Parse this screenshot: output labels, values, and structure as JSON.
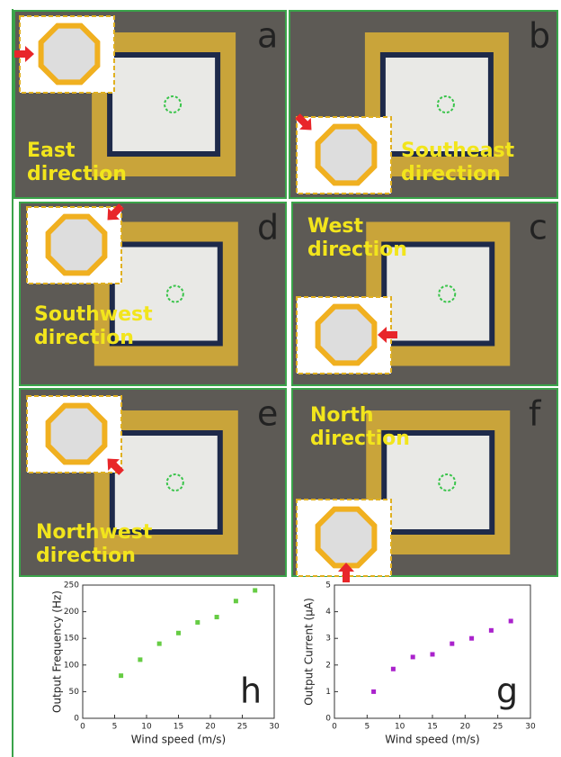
{
  "panels": [
    {
      "letter": "a",
      "lines": [
        "East",
        "direction"
      ]
    },
    {
      "letter": "b",
      "lines": [
        "Southeast",
        "direction"
      ]
    },
    {
      "letter": "d",
      "lines": [
        "Southwest",
        "direction"
      ]
    },
    {
      "letter": "c",
      "lines": [
        "West",
        "direction"
      ]
    },
    {
      "letter": "e",
      "lines": [
        "Northwest",
        "direction"
      ]
    },
    {
      "letter": "f",
      "lines": [
        "North",
        "direction"
      ]
    }
  ],
  "chart_data": [
    {
      "type": "scatter",
      "panel_label": "h",
      "x_label": "Wind speed (m/s)",
      "y_label": "Output Frequency (Hz)",
      "x": [
        6,
        9,
        12,
        15,
        18,
        21,
        24,
        27
      ],
      "values": [
        80,
        110,
        140,
        160,
        180,
        190,
        220,
        240
      ],
      "color": "#66cc44",
      "xlim": [
        0,
        30
      ],
      "xticks": [
        0,
        5,
        10,
        15,
        20,
        25,
        30
      ],
      "ylim": [
        0,
        250
      ],
      "yticks": [
        0,
        50,
        100,
        150,
        200,
        250
      ]
    },
    {
      "type": "scatter",
      "panel_label": "g",
      "x_label": "Wind speed (m/s)",
      "y_label": "Output Current (μA)",
      "x": [
        6,
        9,
        12,
        15,
        18,
        21,
        24,
        27
      ],
      "values": [
        1.0,
        1.85,
        2.3,
        2.4,
        2.8,
        3.0,
        3.3,
        3.65
      ],
      "color": "#aa22cc",
      "xlim": [
        0,
        30
      ],
      "xticks": [
        0,
        5,
        10,
        15,
        20,
        25,
        30
      ],
      "ylim": [
        0,
        5
      ],
      "yticks": [
        0,
        1,
        2,
        3,
        4,
        5
      ]
    }
  ]
}
